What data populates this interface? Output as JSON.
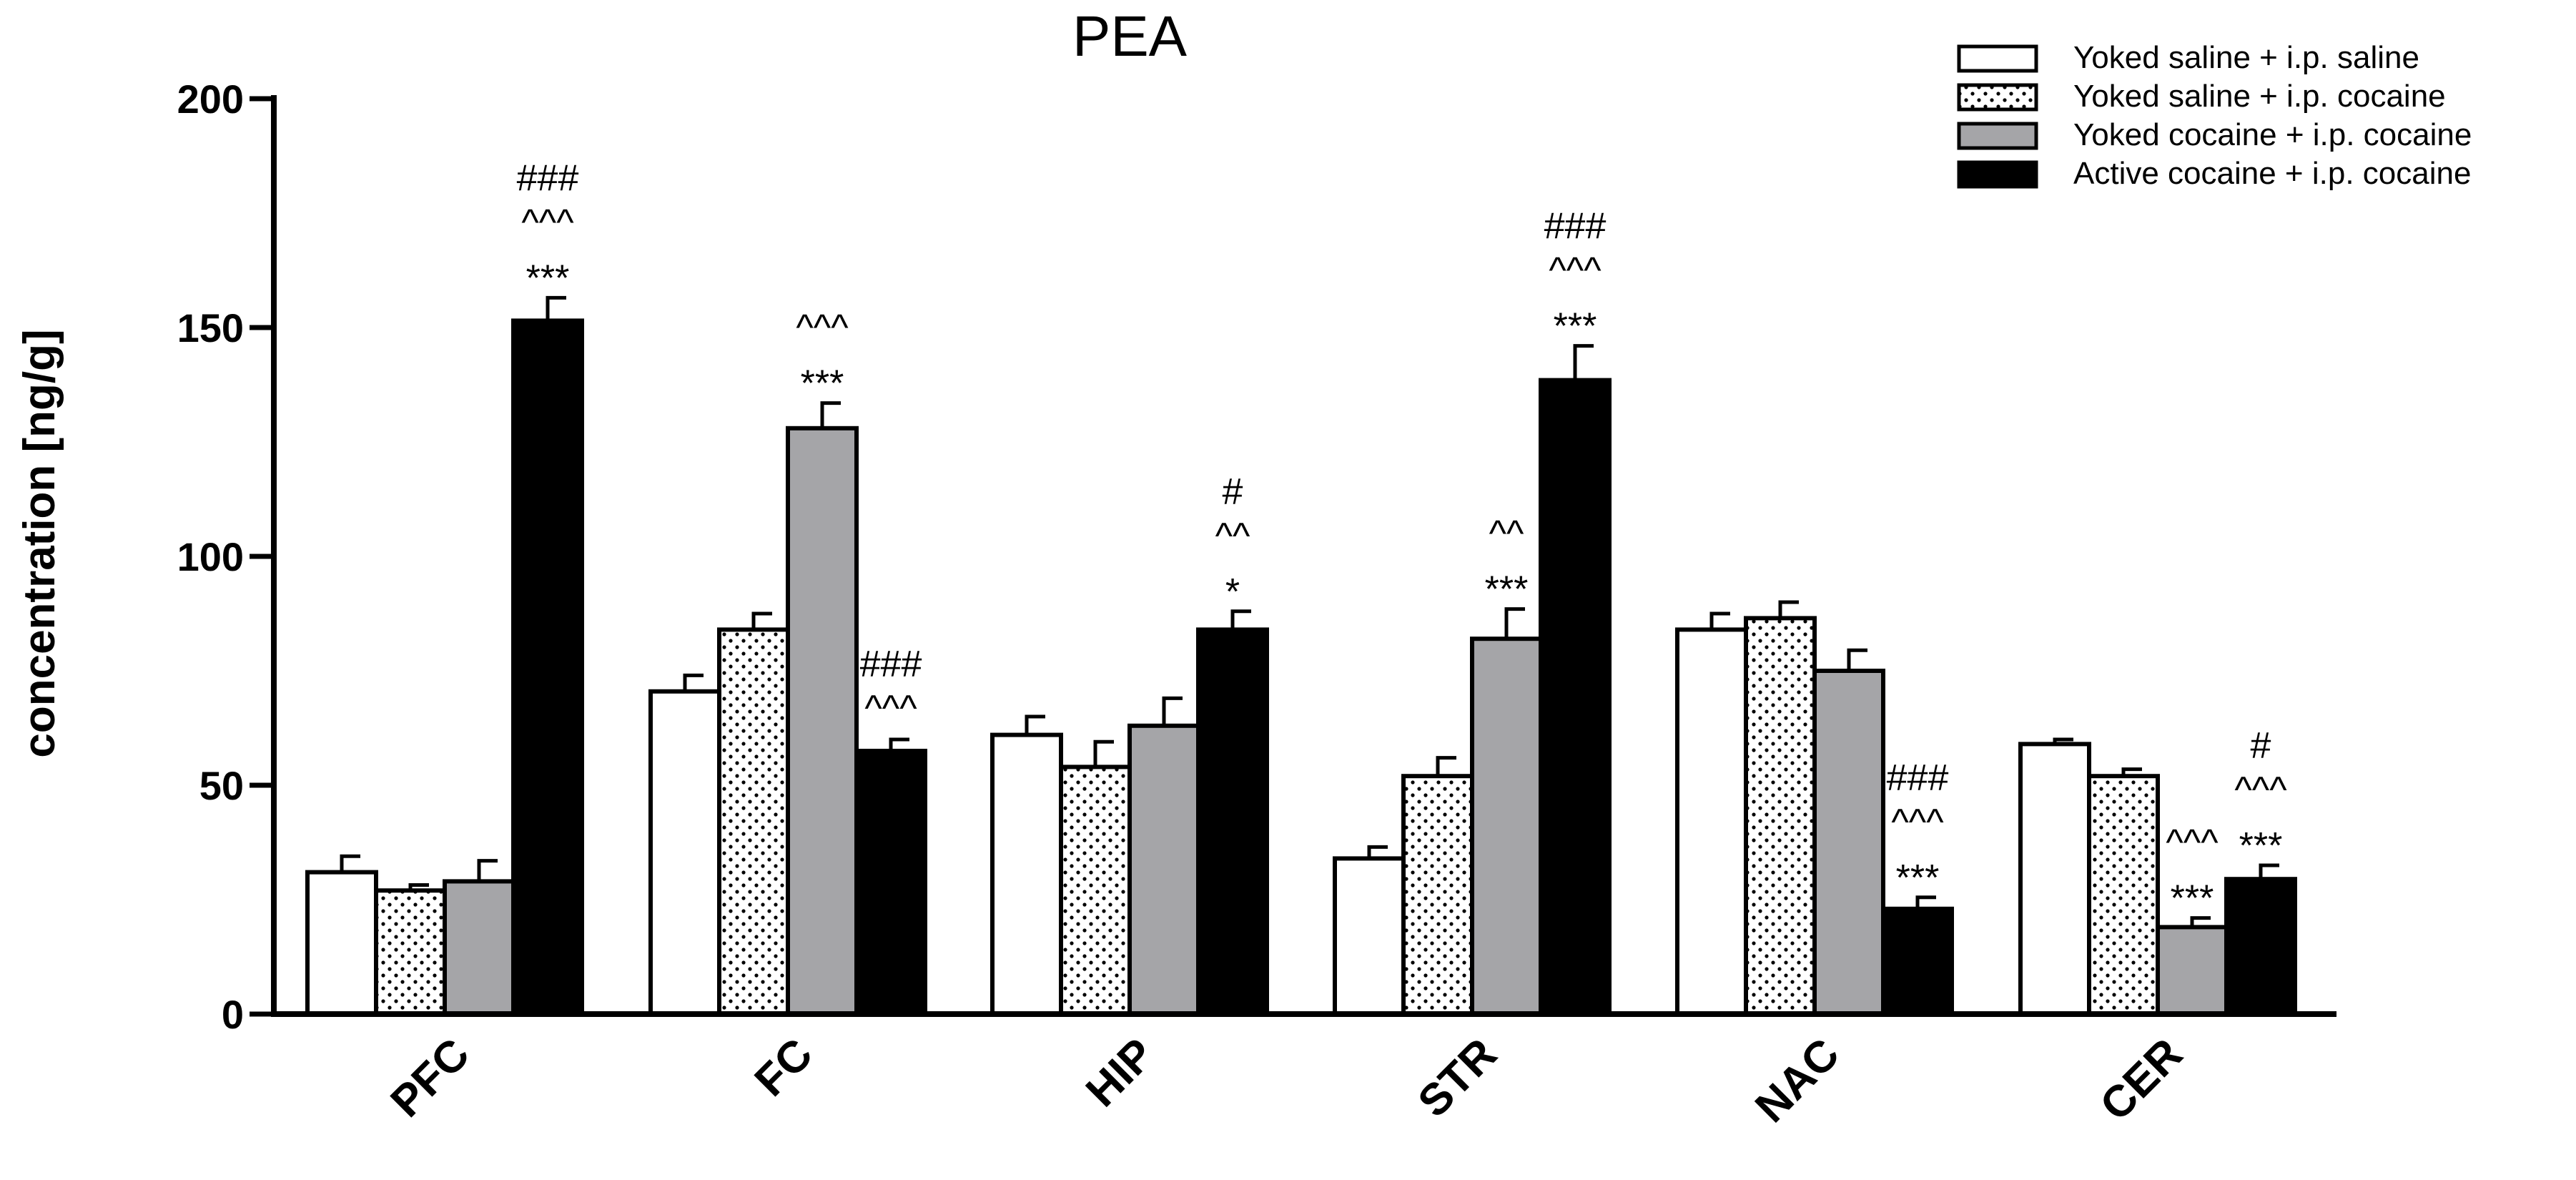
{
  "chart_data": {
    "type": "bar",
    "title": "PEA",
    "xlabel": "",
    "ylabel": "concentration [ng/g]",
    "ylim": [
      0,
      200
    ],
    "yticks": [
      0,
      50,
      100,
      150,
      200
    ],
    "grid": false,
    "legend_position": "top-right",
    "categories": [
      "PFC",
      "FC",
      "HIP",
      "STR",
      "NAC",
      "CER"
    ],
    "series": [
      {
        "name": "Yoked saline + i.p. saline",
        "fill": "white",
        "values": [
          31,
          70.5,
          61,
          34,
          84,
          59
        ],
        "errors": [
          3.5,
          3.5,
          4,
          2.5,
          3.5,
          1
        ]
      },
      {
        "name": "Yoked saline + i.p. cocaine",
        "fill": "dotted",
        "values": [
          27,
          84,
          54,
          52,
          86.5,
          52
        ],
        "errors": [
          1.2,
          3.5,
          5.5,
          4,
          3.5,
          1.5
        ]
      },
      {
        "name": "Yoked cocaine + i.p. cocaine",
        "fill": "gray",
        "values": [
          29,
          128,
          63,
          82,
          75,
          19
        ],
        "errors": [
          4.5,
          5.5,
          6,
          6.5,
          4.5,
          2
        ]
      },
      {
        "name": "Active cocaine + i.p. cocaine",
        "fill": "black",
        "values": [
          151.5,
          57.5,
          84,
          138.5,
          23,
          29.5
        ],
        "errors": [
          5,
          2.5,
          4,
          7.5,
          2.5,
          3
        ]
      }
    ],
    "annotations": [
      {
        "category": 0,
        "series": 3,
        "lines": [
          "###",
          "^^^",
          "***"
        ]
      },
      {
        "category": 1,
        "series": 2,
        "lines": [
          "^^^",
          "***"
        ]
      },
      {
        "category": 1,
        "series": 3,
        "lines": [
          "###",
          "^^^"
        ]
      },
      {
        "category": 2,
        "series": 3,
        "lines": [
          "#",
          "^^",
          "*"
        ]
      },
      {
        "category": 3,
        "series": 2,
        "lines": [
          "^^",
          "***"
        ]
      },
      {
        "category": 3,
        "series": 3,
        "lines": [
          "###",
          "^^^",
          "***"
        ]
      },
      {
        "category": 4,
        "series": 3,
        "lines": [
          "###",
          "^^^",
          "***"
        ]
      },
      {
        "category": 5,
        "series": 2,
        "lines": [
          "^^^",
          "***"
        ]
      },
      {
        "category": 5,
        "series": 3,
        "lines": [
          "#",
          "^^^",
          "***"
        ]
      }
    ]
  },
  "colors": {
    "gray": "#a5a5a8",
    "black": "#000000",
    "white": "#ffffff",
    "dot": "#000000"
  }
}
